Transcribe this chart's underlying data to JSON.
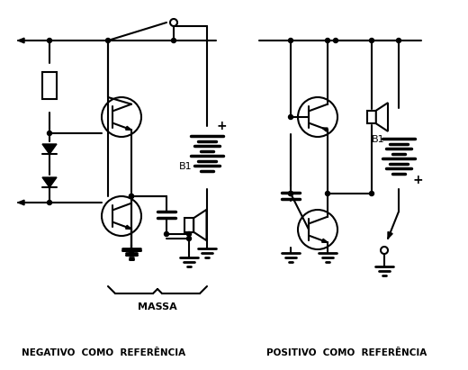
{
  "label_left": "NEGATIVO  COMO  REFERÊNCIA",
  "label_right": "POSITIVO  COMO  REFERÊNCIA",
  "label_massa": "MASSA",
  "label_b1": "B1",
  "label_plus": "+",
  "bg_color": "#ffffff",
  "fg_color": "#000000",
  "lw": 1.5
}
